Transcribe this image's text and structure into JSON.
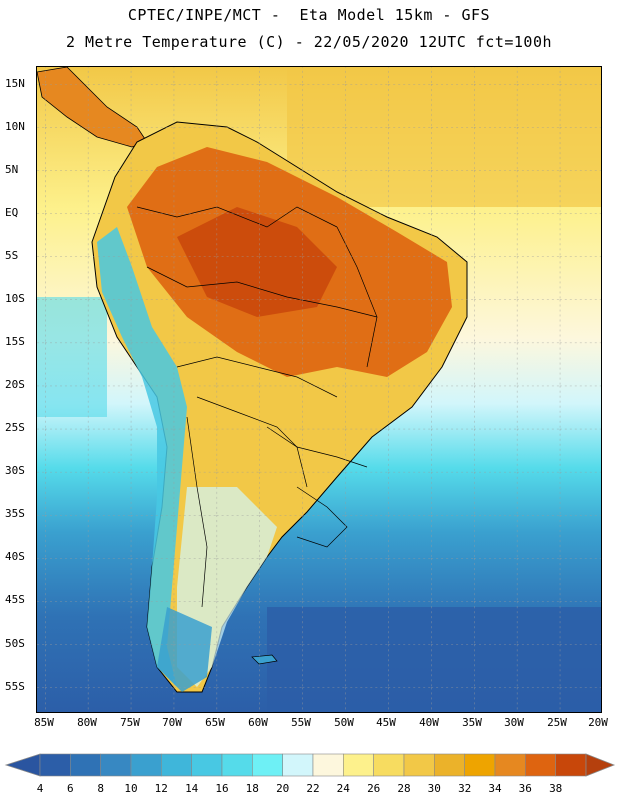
{
  "header": {
    "line1": "CPTEC/INPE/MCT -  Eta Model 15km - GFS",
    "line2": "2 Metre Temperature (C) - 22/05/2020 12UTC fct=100h"
  },
  "map": {
    "lat_labels": [
      "15N",
      "10N",
      "5N",
      "EQ",
      "5S",
      "10S",
      "15S",
      "20S",
      "25S",
      "30S",
      "35S",
      "40S",
      "45S",
      "50S",
      "55S"
    ],
    "lon_labels": [
      "85W",
      "80W",
      "75W",
      "70W",
      "65W",
      "60W",
      "55W",
      "50W",
      "45W",
      "40W",
      "35W",
      "30W",
      "25W",
      "20W"
    ],
    "lat_range": [
      17,
      -58
    ],
    "lon_range": [
      -86,
      -20
    ]
  },
  "legend": {
    "labels": [
      "4",
      "6",
      "8",
      "10",
      "12",
      "14",
      "16",
      "18",
      "20",
      "22",
      "24",
      "26",
      "28",
      "30",
      "32",
      "34",
      "36",
      "38"
    ],
    "colors": [
      "#2c5ea8",
      "#2f72b5",
      "#3788c2",
      "#3aa0cf",
      "#3fb6da",
      "#48c8e3",
      "#55dbea",
      "#6ef0f5",
      "#d2f6fb",
      "#fdf7dd",
      "#fdf18c",
      "#f7dc60",
      "#f2c847",
      "#ebb22a",
      "#eea400",
      "#e68820",
      "#de6410",
      "#c8470a"
    ],
    "low_color": "#2a55a0",
    "high_color": "#b5400d"
  }
}
